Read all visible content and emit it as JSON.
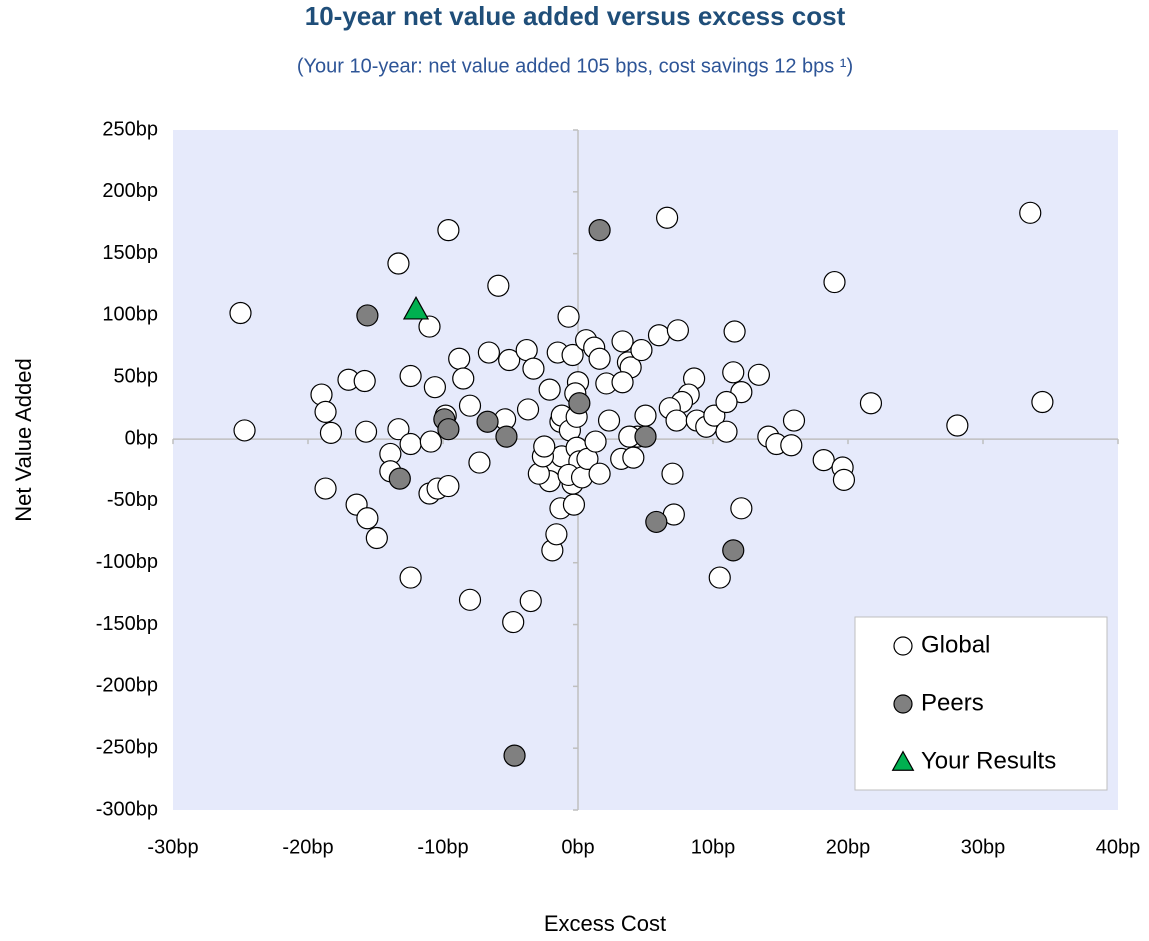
{
  "chart_data": {
    "type": "scatter",
    "title": "10-year net value added versus excess cost",
    "subtitle": "(Your 10-year: net value added 105 bps, cost savings 12 bps ¹)",
    "x_label": "Excess Cost",
    "y_label": "Net Value Added",
    "xlim": [
      -30,
      40
    ],
    "ylim": [
      -300,
      250
    ],
    "xticks": [
      {
        "value": -30,
        "label": "-30bp"
      },
      {
        "value": -20,
        "label": "-20bp"
      },
      {
        "value": -10,
        "label": "-10bp"
      },
      {
        "value": 0,
        "label": "0bp"
      },
      {
        "value": 10,
        "label": "10bp"
      },
      {
        "value": 20,
        "label": "20bp"
      },
      {
        "value": 30,
        "label": "30bp"
      },
      {
        "value": 40,
        "label": "40bp"
      }
    ],
    "yticks": [
      {
        "value": 250,
        "label": "250bp"
      },
      {
        "value": 200,
        "label": "200bp"
      },
      {
        "value": 150,
        "label": "150bp"
      },
      {
        "value": 100,
        "label": "100bp"
      },
      {
        "value": 50,
        "label": "50bp"
      },
      {
        "value": 0,
        "label": "0bp"
      },
      {
        "value": -50,
        "label": "-50bp"
      },
      {
        "value": -100,
        "label": "-100bp"
      },
      {
        "value": -150,
        "label": "-150bp"
      },
      {
        "value": -200,
        "label": "-200bp"
      },
      {
        "value": -250,
        "label": "-250bp"
      },
      {
        "value": -300,
        "label": "-300bp"
      }
    ],
    "legend": "bottom-right",
    "series": [
      {
        "name": "Global",
        "color": "#ffffff",
        "marker": "circle",
        "x": [
          -25,
          -24.7,
          -9.6,
          -13.3,
          -5.9,
          6.6,
          33.5,
          19,
          34.4,
          28.1,
          21.7,
          -11,
          -0.7,
          -8.8,
          -8.5,
          -6.6,
          -5.1,
          -3.8,
          -3.3,
          -1.5,
          -0.4,
          0.6,
          1.2,
          1.6,
          2.1,
          3.3,
          3.7,
          3.9,
          4.7,
          6,
          7.4,
          11.6,
          11.5,
          12.1,
          13.4,
          8.6,
          8.2,
          7.7,
          6.8,
          7.3,
          8.8,
          9.5,
          10.1,
          11,
          11,
          5,
          2.3,
          3.3,
          0,
          -0.2,
          -2.1,
          -3.7,
          -5.4,
          -8,
          -10.6,
          -12.4,
          -17,
          -15.8,
          -19,
          -18.7,
          -18.3,
          -15.7,
          -13.3,
          -9.8,
          -13.9,
          -12.4,
          -10.9,
          -13.9,
          -16.4,
          -15.6,
          -14.9,
          -18.7,
          -11,
          -10.4,
          -9.6,
          -7.3,
          -12.4,
          -8,
          -3.5,
          -4.8,
          -1.9,
          -1.6,
          -1.3,
          -0.3,
          -1.6,
          -1.2,
          -2.1,
          -2.9,
          -2.6,
          -2.5,
          -1.3,
          -1.2,
          -0.6,
          -0.1,
          -0.1,
          0.1,
          -0.4,
          -0.7,
          0.3,
          0.7,
          1.3,
          1.6,
          4.4,
          3.8,
          3.2,
          4.1,
          7,
          7.1,
          10.5,
          12.1,
          14.1,
          14.7,
          15.8,
          16,
          18.2,
          19.6,
          19.7
        ],
        "values": [
          102,
          7,
          169,
          142,
          124,
          179,
          183,
          127,
          30,
          11,
          29,
          91,
          99,
          65,
          49,
          70,
          64,
          72,
          57,
          70,
          68,
          80,
          74,
          65,
          45,
          79,
          62,
          58,
          72,
          84,
          88,
          87,
          54,
          38,
          52,
          49,
          36,
          30,
          25,
          15,
          15,
          10,
          19,
          30,
          6,
          19,
          15,
          46,
          46,
          37,
          40,
          24,
          16,
          27,
          42,
          51,
          48,
          47,
          36,
          22,
          5,
          6,
          8,
          19,
          -12,
          -4,
          -2,
          -26,
          -53,
          -64,
          -80,
          -40,
          -44,
          -40,
          -38,
          -19,
          -112,
          -130,
          -131,
          -148,
          -90,
          -77,
          -56,
          -53,
          -23,
          -14,
          -34,
          -28,
          -14,
          -6,
          14,
          19,
          7,
          18,
          -7,
          -18,
          -36,
          -29,
          -31,
          -16,
          -2,
          -28,
          2,
          2,
          -16,
          -15,
          -28,
          -61,
          -112,
          -56,
          2,
          -4,
          -5,
          15,
          -17,
          -23,
          -33
        ]
      },
      {
        "name": "Peers",
        "color": "#808080",
        "marker": "circle",
        "x": [
          -15.6,
          1.6,
          -9.9,
          -9.6,
          -6.7,
          -5.3,
          0.1,
          5,
          -13.2,
          5.8,
          11.5,
          -4.7
        ],
        "values": [
          100,
          169,
          16,
          8,
          14,
          2,
          29,
          2,
          -32,
          -67,
          -90,
          -256
        ]
      },
      {
        "name": "Your Results",
        "color": "#00b050",
        "marker": "triangle",
        "x": [
          -12
        ],
        "values": [
          105
        ]
      }
    ]
  }
}
